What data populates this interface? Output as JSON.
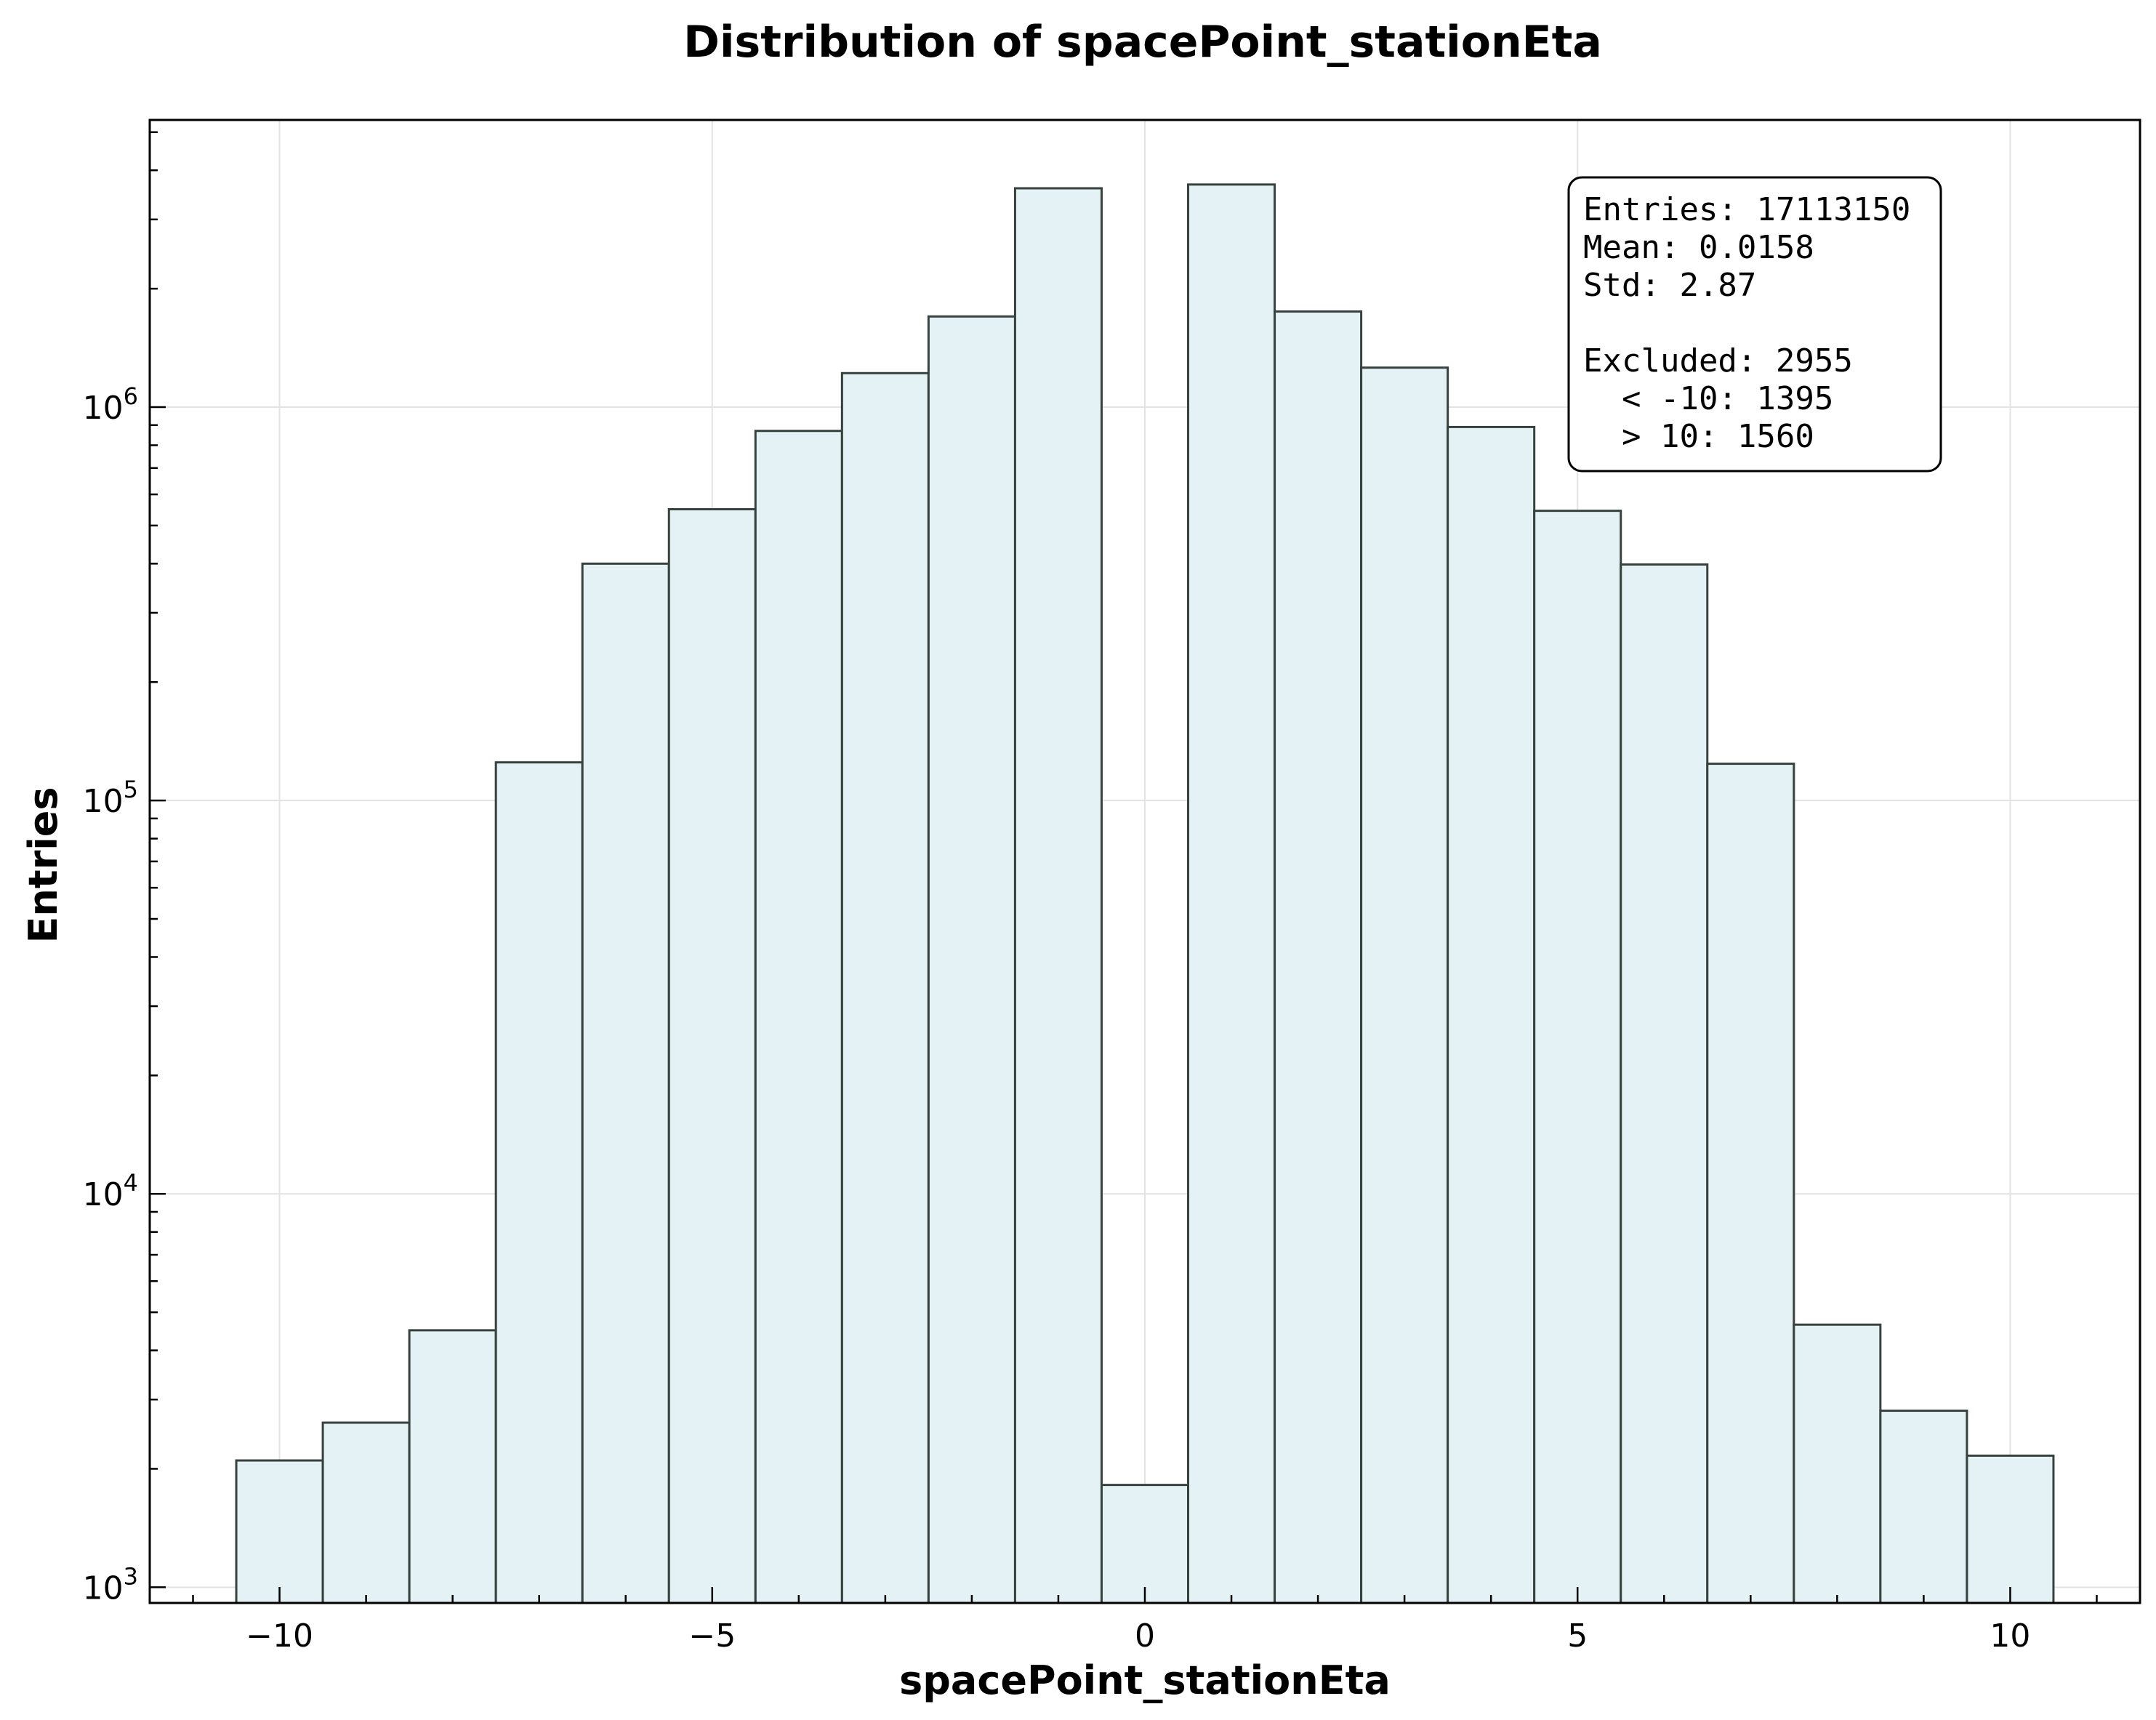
{
  "chart_data": {
    "type": "bar",
    "title": "Distribution of spacePoint_stationEta",
    "xlabel": "spacePoint_stationEta",
    "ylabel": "Entries",
    "xlim": [
      -11.5,
      11.5
    ],
    "ylim_log10": [
      2.96,
      6.73
    ],
    "yscale": "log",
    "grid": true,
    "xticks": [
      {
        "value": -10,
        "label": "−10"
      },
      {
        "value": -5,
        "label": "−5"
      },
      {
        "value": 0,
        "label": "0"
      },
      {
        "value": 5,
        "label": "5"
      },
      {
        "value": 10,
        "label": "10"
      }
    ],
    "yticks": [
      {
        "value": 1000,
        "base": "10",
        "exp": "3"
      },
      {
        "value": 10000,
        "base": "10",
        "exp": "4"
      },
      {
        "value": 100000,
        "base": "10",
        "exp": "5"
      },
      {
        "value": 1000000,
        "base": "10",
        "exp": "6"
      }
    ],
    "bin_width": 1,
    "bin_centers": [
      -10,
      -9,
      -8,
      -7,
      -6,
      -5,
      -4,
      -3,
      -2,
      -1,
      0,
      1,
      2,
      3,
      4,
      5,
      6,
      7,
      8,
      9,
      10
    ],
    "values": [
      2100,
      2620,
      4500,
      125000,
      400000,
      550000,
      870000,
      1220000,
      1700000,
      3600000,
      1820,
      3680000,
      1750000,
      1260000,
      890000,
      545000,
      398000,
      124000,
      4650,
      2810,
      2160
    ],
    "colors": {
      "bar_fill": "#e4f2f5",
      "bar_edge": "#37423f"
    },
    "stats_box": {
      "position": "top-right",
      "lines": [
        "Entries: 17113150",
        "Mean: 0.0158",
        "Std: 2.87",
        "",
        "Excluded: 2955",
        "  < -10: 1395",
        "  > 10: 1560"
      ]
    }
  }
}
